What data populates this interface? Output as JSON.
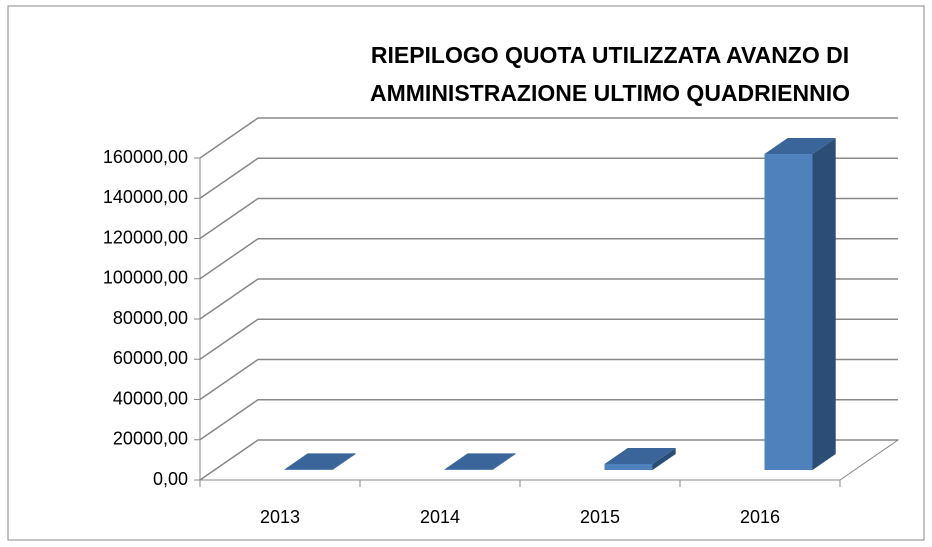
{
  "chart_data": {
    "type": "bar3d",
    "title": "RIEPILOGO QUOTA UTILIZZATA AVANZO DI\nAMMINISTRAZIONE ULTIMO QUADRIENNIO",
    "categories": [
      "2013",
      "2014",
      "2015",
      "2016"
    ],
    "values": [
      300,
      300,
      3000,
      157000
    ],
    "color": "#4f81bd",
    "ylim": [
      0,
      160000
    ],
    "yticks": [
      {
        "value": 0,
        "label": "0,00"
      },
      {
        "value": 20000,
        "label": "20000,00"
      },
      {
        "value": 40000,
        "label": "40000,00"
      },
      {
        "value": 60000,
        "label": "60000,00"
      },
      {
        "value": 80000,
        "label": "80000,00"
      },
      {
        "value": 100000,
        "label": "100000,00"
      },
      {
        "value": 120000,
        "label": "120000,00"
      },
      {
        "value": 140000,
        "label": "140000,00"
      },
      {
        "value": 160000,
        "label": "160000,00"
      }
    ],
    "grid": true
  }
}
